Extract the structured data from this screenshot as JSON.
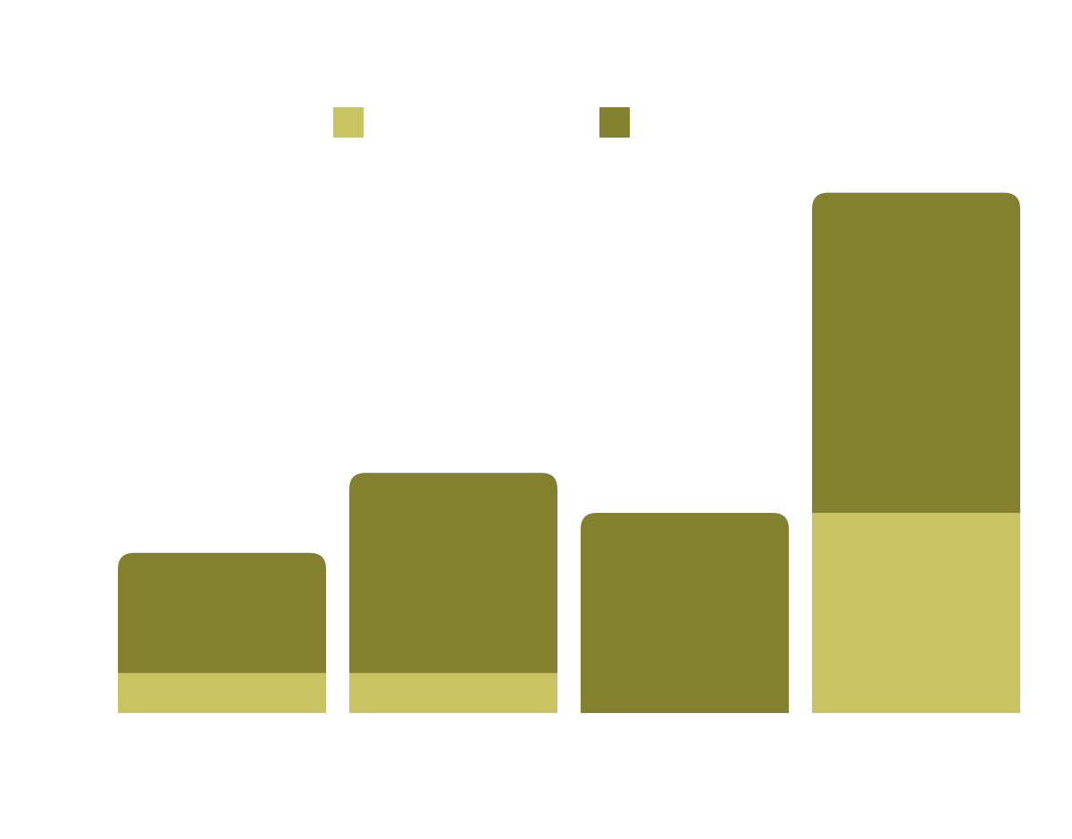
{
  "chart_data": {
    "type": "bar",
    "stacked": true,
    "categories": [
      "",
      "",
      "",
      ""
    ],
    "series": [
      {
        "values": [
          1,
          1,
          0,
          5
        ],
        "color": "#c8c462"
      },
      {
        "values": [
          3,
          5,
          5,
          8
        ],
        "color": "#84812e"
      }
    ],
    "ylim": [
      0,
      14
    ],
    "grid": false,
    "legend_position": "top-center",
    "bar_corner": "rounded-top"
  }
}
